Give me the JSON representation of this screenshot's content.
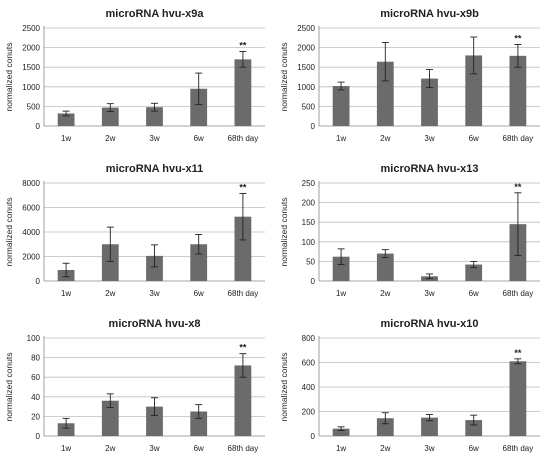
{
  "chart_data": [
    {
      "type": "bar",
      "title": "microRNA hvu-x9a",
      "ylabel": "normalized conuts",
      "categories": [
        "1w",
        "2w",
        "3w",
        "6w",
        "68th day"
      ],
      "values": [
        320,
        470,
        480,
        950,
        1700
      ],
      "errors": [
        60,
        100,
        100,
        400,
        200
      ],
      "annotations": [
        "",
        "",
        "",
        "",
        "**"
      ],
      "ylim": [
        0,
        2500
      ],
      "yticks": [
        0,
        500,
        1000,
        1500,
        2000,
        2500
      ],
      "grid": true,
      "bar_color": "#6b6b6b"
    },
    {
      "type": "bar",
      "title": "microRNA hvu-x9b",
      "ylabel": "normalized conuts",
      "categories": [
        "1w",
        "2w",
        "3w",
        "6w",
        "68th day"
      ],
      "values": [
        1020,
        1640,
        1210,
        1800,
        1790
      ],
      "errors": [
        100,
        490,
        230,
        470,
        290
      ],
      "annotations": [
        "",
        "",
        "",
        "",
        "**"
      ],
      "ylim": [
        0,
        2500
      ],
      "yticks": [
        0,
        500,
        1000,
        1500,
        2000,
        2500
      ],
      "grid": true,
      "bar_color": "#6b6b6b"
    },
    {
      "type": "bar",
      "title": "microRNA hvu-x11",
      "ylabel": "normalized conuts",
      "categories": [
        "1w",
        "2w",
        "3w",
        "6w",
        "68th day"
      ],
      "values": [
        900,
        3000,
        2050,
        3000,
        5250
      ],
      "errors": [
        550,
        1400,
        900,
        800,
        1900
      ],
      "annotations": [
        "",
        "",
        "",
        "",
        "**"
      ],
      "ylim": [
        0,
        8000
      ],
      "yticks": [
        0,
        2000,
        4000,
        6000,
        8000
      ],
      "grid": true,
      "bar_color": "#6b6b6b"
    },
    {
      "type": "bar",
      "title": "microRNA hvu-x13",
      "ylabel": "normalized conuts",
      "categories": [
        "1w",
        "2w",
        "3w",
        "6w",
        "68th day"
      ],
      "values": [
        62,
        70,
        12,
        42,
        145
      ],
      "errors": [
        20,
        10,
        6,
        8,
        80
      ],
      "annotations": [
        "",
        "",
        "",
        "",
        "**"
      ],
      "ylim": [
        0,
        250
      ],
      "yticks": [
        0,
        50,
        100,
        150,
        200,
        250
      ],
      "grid": true,
      "bar_color": "#6b6b6b"
    },
    {
      "type": "bar",
      "title": "microRNA hvu-x8",
      "ylabel": "normalized conuts",
      "categories": [
        "1w",
        "2w",
        "3w",
        "6w",
        "68th day"
      ],
      "values": [
        13,
        36,
        30,
        25,
        72
      ],
      "errors": [
        5,
        7,
        9,
        7,
        12
      ],
      "annotations": [
        "",
        "",
        "",
        "",
        "**"
      ],
      "ylim": [
        0,
        100
      ],
      "yticks": [
        0,
        20,
        40,
        60,
        80,
        100
      ],
      "grid": true,
      "bar_color": "#6b6b6b"
    },
    {
      "type": "bar",
      "title": "microRNA hvu-x10",
      "ylabel": "normalized conuts",
      "categories": [
        "1w",
        "2w",
        "3w",
        "6w",
        "68th day"
      ],
      "values": [
        60,
        145,
        150,
        130,
        610
      ],
      "errors": [
        15,
        45,
        25,
        40,
        20
      ],
      "annotations": [
        "",
        "",
        "",
        "",
        "**"
      ],
      "ylim": [
        0,
        800
      ],
      "yticks": [
        0,
        200,
        400,
        600,
        800
      ],
      "grid": true,
      "bar_color": "#6b6b6b"
    }
  ]
}
